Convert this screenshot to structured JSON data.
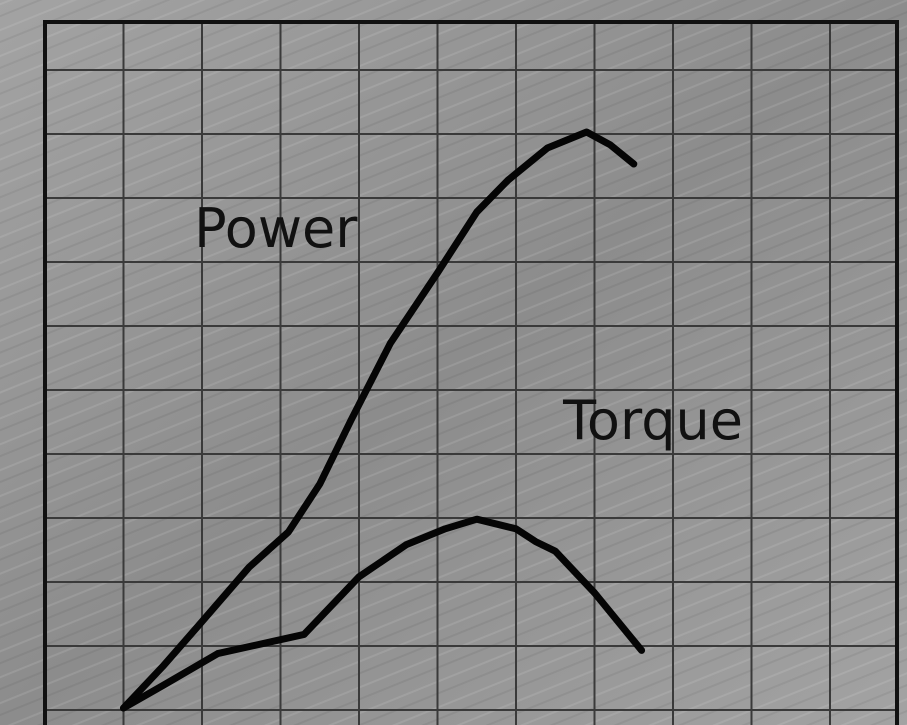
{
  "colors": {
    "background": "#a3a3a3",
    "background_dark": "#8c8c8c",
    "grid": "#3a3a3a",
    "frame": "#111111",
    "line": "#050505"
  },
  "chart_data": {
    "type": "line",
    "title": "",
    "xlabel": "",
    "ylabel": "",
    "grid": true,
    "legend": "none",
    "x_gridlines": 11,
    "y_gridlines": 10,
    "xlim": [
      0,
      11
    ],
    "ylim": [
      0,
      10
    ],
    "series": [
      {
        "name": "Power",
        "label_at": [
          1.9,
          7.2
        ],
        "points": [
          [
            1.0,
            0.0
          ],
          [
            1.5,
            0.65
          ],
          [
            2.0,
            1.35
          ],
          [
            2.6,
            2.2
          ],
          [
            3.1,
            2.75
          ],
          [
            3.5,
            3.5
          ],
          [
            3.9,
            4.5
          ],
          [
            4.4,
            5.7
          ],
          [
            5.0,
            6.8
          ],
          [
            5.5,
            7.75
          ],
          [
            5.9,
            8.25
          ],
          [
            6.4,
            8.75
          ],
          [
            6.9,
            9.0
          ],
          [
            7.2,
            8.8
          ],
          [
            7.5,
            8.5
          ]
        ]
      },
      {
        "name": "Torque",
        "label_at": [
          6.6,
          4.2
        ],
        "points": [
          [
            1.0,
            0.0
          ],
          [
            1.5,
            0.35
          ],
          [
            2.2,
            0.85
          ],
          [
            3.3,
            1.15
          ],
          [
            4.0,
            2.05
          ],
          [
            4.6,
            2.55
          ],
          [
            5.1,
            2.8
          ],
          [
            5.5,
            2.95
          ],
          [
            6.0,
            2.8
          ],
          [
            6.25,
            2.6
          ],
          [
            6.5,
            2.45
          ],
          [
            7.0,
            1.8
          ],
          [
            7.6,
            0.9
          ]
        ]
      }
    ]
  }
}
